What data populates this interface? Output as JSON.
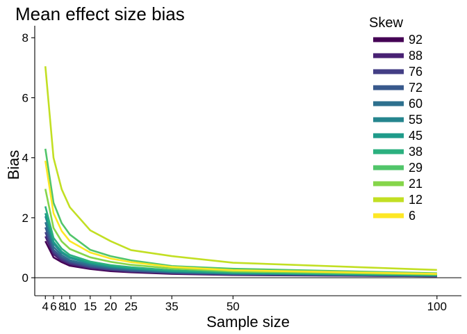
{
  "chart_data": {
    "type": "line",
    "title": "Mean effect size bias",
    "xlabel": "Sample size",
    "ylabel": "Bias",
    "x": [
      4,
      6,
      8,
      10,
      15,
      20,
      25,
      35,
      50,
      100
    ],
    "x_ticks": [
      "4",
      "6",
      "8",
      "10",
      "15",
      "20",
      "25",
      "35",
      "50",
      "100"
    ],
    "y_ticks": [
      "0",
      "2",
      "4",
      "6",
      "8"
    ],
    "xlim": [
      1.4,
      106
    ],
    "ylim": [
      -0.6,
      8.4
    ],
    "reference_line_y": 0,
    "grid": false,
    "legend_title": "Skew",
    "legend_position": "top-right",
    "series": [
      {
        "name": "92",
        "color": "#440154",
        "values": [
          1.22,
          0.68,
          0.52,
          0.4,
          0.29,
          0.22,
          0.18,
          0.13,
          0.09,
          0.05
        ]
      },
      {
        "name": "88",
        "color": "#482173",
        "values": [
          1.38,
          0.78,
          0.57,
          0.45,
          0.32,
          0.25,
          0.2,
          0.15,
          0.1,
          0.05
        ]
      },
      {
        "name": "76",
        "color": "#433E85",
        "values": [
          1.52,
          0.85,
          0.62,
          0.49,
          0.35,
          0.27,
          0.22,
          0.16,
          0.11,
          0.06
        ]
      },
      {
        "name": "72",
        "color": "#38598C",
        "values": [
          1.68,
          0.93,
          0.68,
          0.54,
          0.38,
          0.3,
          0.24,
          0.17,
          0.12,
          0.06
        ]
      },
      {
        "name": "60",
        "color": "#2D708E",
        "values": [
          1.85,
          1.03,
          0.75,
          0.59,
          0.42,
          0.33,
          0.27,
          0.19,
          0.13,
          0.07
        ]
      },
      {
        "name": "55",
        "color": "#25858E",
        "values": [
          2.05,
          1.14,
          0.83,
          0.66,
          0.47,
          0.36,
          0.3,
          0.21,
          0.15,
          0.08
        ]
      },
      {
        "name": "45",
        "color": "#1E9B8A",
        "values": [
          2.15,
          1.2,
          0.87,
          0.69,
          0.49,
          0.38,
          0.31,
          0.22,
          0.16,
          0.08
        ]
      },
      {
        "name": "38",
        "color": "#2BB07F",
        "values": [
          2.38,
          1.33,
          0.97,
          0.76,
          0.54,
          0.42,
          0.35,
          0.25,
          0.17,
          0.09
        ]
      },
      {
        "name": "29",
        "color": "#51C56A",
        "values": [
          4.3,
          2.5,
          1.82,
          1.44,
          0.93,
          0.72,
          0.58,
          0.39,
          0.3,
          0.15
        ]
      },
      {
        "name": "21",
        "color": "#85D54A",
        "values": [
          2.96,
          1.66,
          1.21,
          0.96,
          0.68,
          0.53,
          0.43,
          0.31,
          0.21,
          0.11
        ]
      },
      {
        "name": "12",
        "color": "#C2DF23",
        "values": [
          7.05,
          4.0,
          2.95,
          2.35,
          1.58,
          1.22,
          0.92,
          0.72,
          0.5,
          0.26
        ]
      },
      {
        "name": "6",
        "color": "#FDE725",
        "values": [
          3.9,
          2.15,
          1.56,
          1.22,
          0.84,
          0.64,
          0.52,
          0.36,
          0.25,
          0.13
        ]
      }
    ]
  }
}
